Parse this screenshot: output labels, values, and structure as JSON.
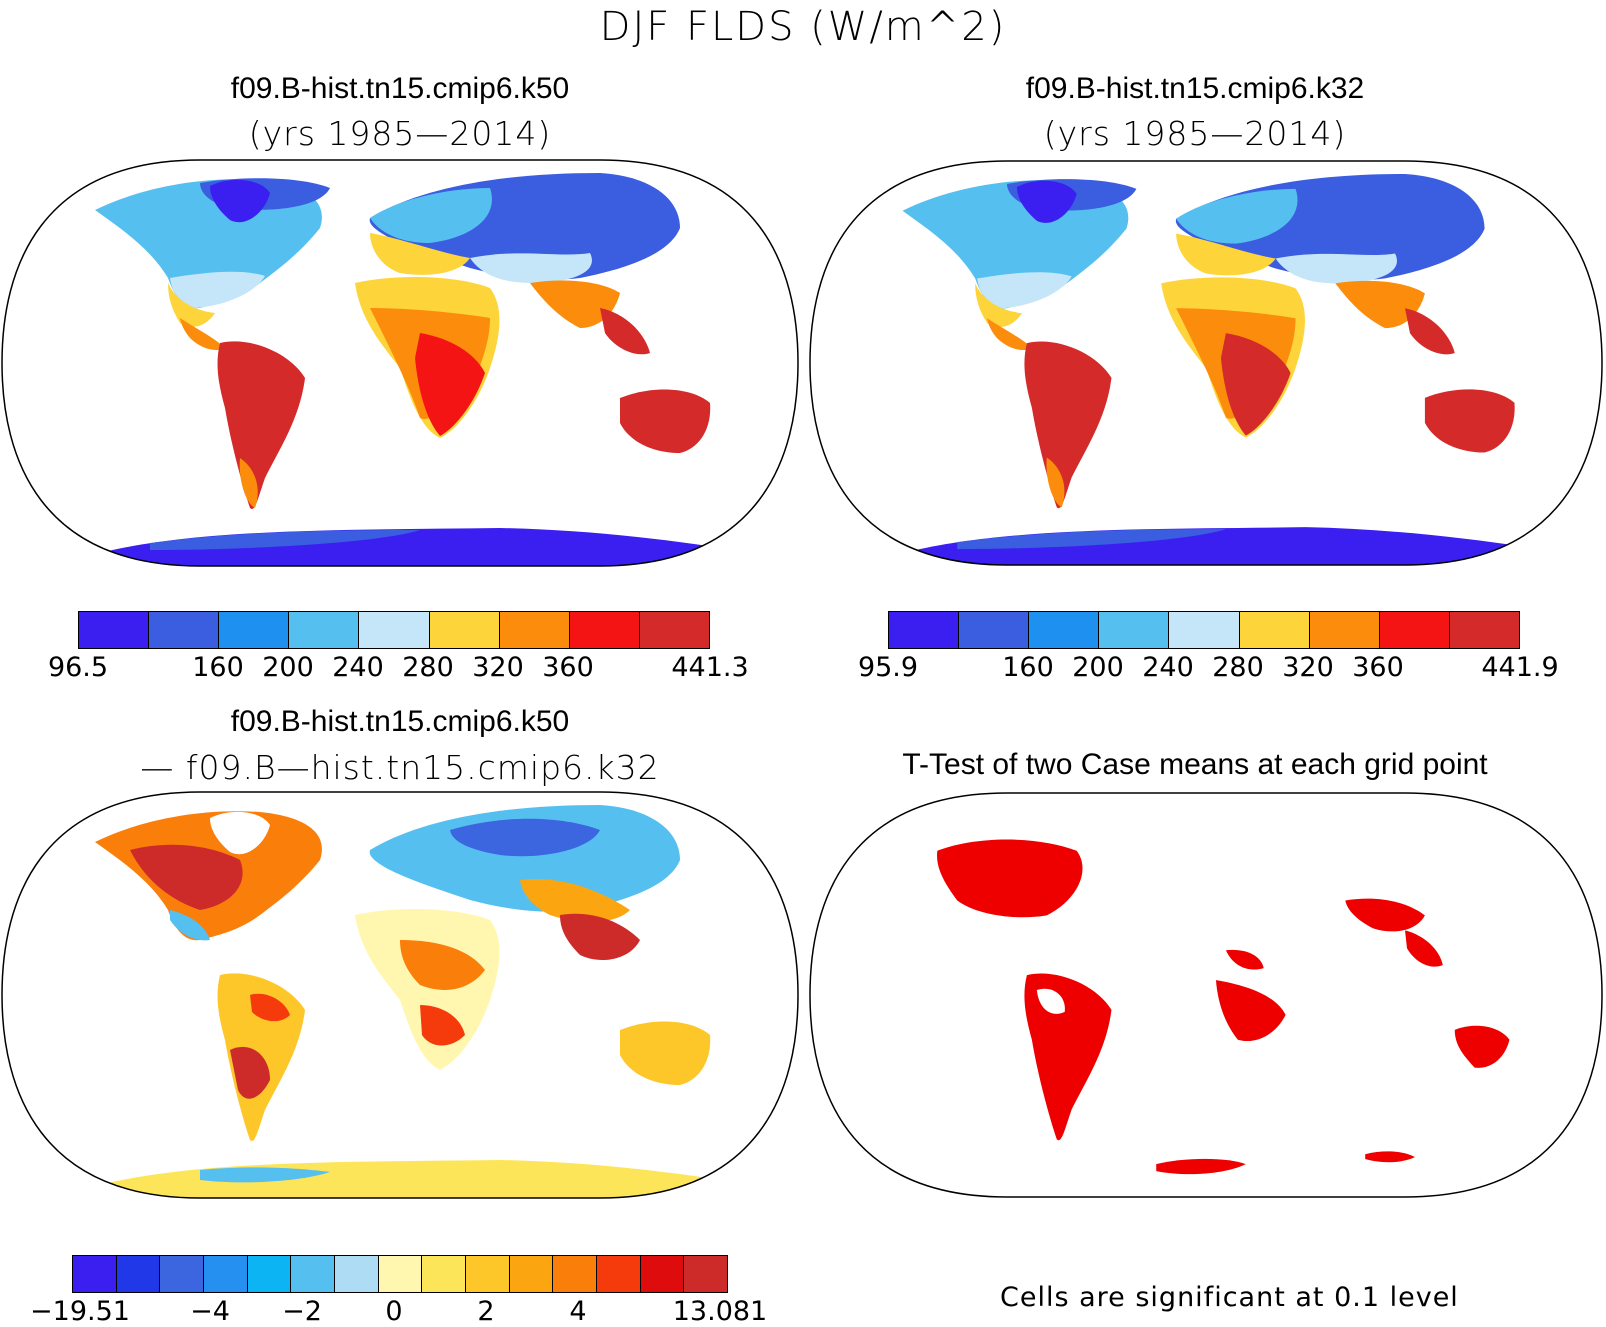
{
  "figure": {
    "title": "DJF FLDS (W/m^2)"
  },
  "panels": [
    {
      "id": "case1",
      "title": "f09.B-hist.tn15.cmip6.k50",
      "subtitle": "(yrs 1985—2014)",
      "colorbar": {
        "colors": [
          "#3a1ff0",
          "#3b5de0",
          "#1e90f0",
          "#55bff0",
          "#c5e6f8",
          "#fdd43a",
          "#fb8c0c",
          "#f51414",
          "#d42a2a"
        ],
        "tick_labels": [
          "96.5",
          "160",
          "200",
          "240",
          "280",
          "320",
          "360",
          "441.3"
        ]
      }
    },
    {
      "id": "case2",
      "title": "f09.B-hist.tn15.cmip6.k32",
      "subtitle": "(yrs 1985—2014)",
      "colorbar": {
        "colors": [
          "#3a1ff0",
          "#3b5de0",
          "#1e90f0",
          "#55bff0",
          "#c5e6f8",
          "#fdd43a",
          "#fb8c0c",
          "#f51414",
          "#d42a2a"
        ],
        "tick_labels": [
          "95.9",
          "160",
          "200",
          "240",
          "280",
          "320",
          "360",
          "441.9"
        ]
      }
    },
    {
      "id": "difference",
      "title": "f09.B-hist.tn15.cmip6.k50",
      "subtitle": "— f09.B—hist.tn15.cmip6.k32",
      "colorbar": {
        "colors": [
          "#3a1ff0",
          "#2038e8",
          "#3b66e0",
          "#2590f0",
          "#0cb4f4",
          "#55c0f0",
          "#aedcf4",
          "#fff7b0",
          "#fde55a",
          "#fdc72a",
          "#fba510",
          "#f97e0a",
          "#f53a0c",
          "#de0c0c",
          "#cd2a2a"
        ],
        "tick_labels": [
          "−19.51",
          "−4",
          "−2",
          "0",
          "2",
          "4",
          "13.081"
        ]
      }
    },
    {
      "id": "ttest",
      "title": "T-Test of two Case means at each grid point",
      "note": "Cells are significant at 0.1 level",
      "colors": {
        "significant": "#ee0000"
      }
    }
  ]
}
